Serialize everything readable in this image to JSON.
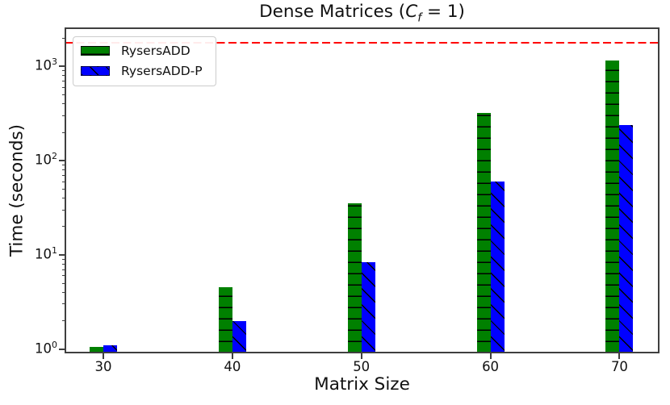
{
  "figure": {
    "background": "#ffffff",
    "title_parts": {
      "prefix": "Dense Matrices (",
      "variable": "C",
      "subscript": "f",
      "suffix": " = 1)"
    }
  },
  "chart_data": {
    "type": "bar",
    "title": "Dense Matrices (C_f = 1)",
    "xlabel": "Matrix Size",
    "ylabel": "Time (seconds)",
    "yscale": "log",
    "ylim": [
      0.9,
      2600
    ],
    "xlim": [
      27,
      73.1
    ],
    "grid": false,
    "categories": [
      30,
      40,
      50,
      60,
      70
    ],
    "x_tick_labels": [
      "30",
      "40",
      "50",
      "60",
      "70"
    ],
    "y_tick_labels": [
      "10^0",
      "10^1",
      "10^2",
      "10^3"
    ],
    "yticks": [
      {
        "base": "10",
        "exp": "0",
        "value": 1
      },
      {
        "base": "10",
        "exp": "1",
        "value": 10
      },
      {
        "base": "10",
        "exp": "2",
        "value": 100
      },
      {
        "base": "10",
        "exp": "3",
        "value": 1000
      }
    ],
    "series": [
      {
        "name": "RysersADD",
        "color": "#008000",
        "hatch": "-",
        "values": [
          1.05,
          4.5,
          35,
          320,
          1150
        ]
      },
      {
        "name": "RysersADD-P",
        "color": "#0000ff",
        "hatch": "\\",
        "values": [
          1.1,
          2.0,
          8.3,
          60,
          240
        ]
      }
    ],
    "annotations": {
      "timeout_line": {
        "value": 1800,
        "color": "#ff0000",
        "style": "dashed"
      }
    },
    "legend": {
      "position": "upper left",
      "entries": [
        "RysersADD",
        "RysersADD-P"
      ]
    },
    "colors": {
      "series_green": "#008000",
      "series_blue": "#0000ff",
      "timeout_red": "#ff0000",
      "spine": "#3f3f3f",
      "text": "#111111"
    }
  }
}
